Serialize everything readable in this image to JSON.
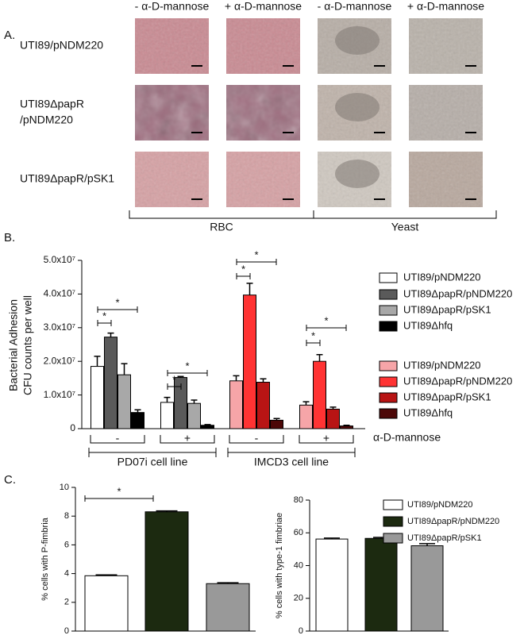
{
  "panel_labels": [
    "A.",
    "B.",
    "C."
  ],
  "panel_a": {
    "column_headers": [
      "- α-D-mannose",
      "+ α-D-mannose",
      "- α-D-mannose",
      "+ α-D-mannose"
    ],
    "row_labels": [
      [
        "UTI89/pNDM220"
      ],
      [
        "UTI89ΔpapR",
        "/pNDM220"
      ],
      [
        "UTI89ΔpapR/pSK1"
      ]
    ],
    "groups": [
      "RBC",
      "Yeast"
    ]
  },
  "chart_data": [
    {
      "type": "bar",
      "ylabel": [
        "Bacterial Adhesion",
        "CFU counts per well"
      ],
      "categories": [
        "-",
        "+",
        "-",
        "+"
      ],
      "group_labels": [
        "PD07i cell line",
        "IMCD3 cell line"
      ],
      "category_axis_label": "α-D-mannose",
      "ylim": [
        0,
        50000000
      ],
      "yticks": [
        0,
        {
          "value": 10000000,
          "label": "1.0x10⁷"
        },
        {
          "value": 20000000,
          "label": "2.0x10⁷"
        },
        {
          "value": 30000000,
          "label": "3.0x10⁷"
        },
        {
          "value": 40000000,
          "label": "4.0x10⁷"
        },
        {
          "value": 50000000,
          "label": "5.0x10⁷"
        }
      ],
      "series": [
        {
          "name": "UTI89/pNDM220",
          "color": "#ffffff",
          "values": [
            18500000,
            7800000,
            null,
            null
          ],
          "errors": [
            3000000,
            1500000,
            null,
            null
          ]
        },
        {
          "name": "UTI89ΔpapR/pNDM220",
          "color": "#5a5a5a",
          "values": [
            27200000,
            15200000,
            null,
            null
          ],
          "errors": [
            1200000,
            300000,
            null,
            null
          ]
        },
        {
          "name": "UTI89ΔpapR/pSK1",
          "color": "#a8a8a8",
          "values": [
            16000000,
            7500000,
            null,
            null
          ],
          "errors": [
            3300000,
            1000000,
            null,
            null
          ]
        },
        {
          "name": "UTI89Δhfq",
          "color": "#000000",
          "values": [
            4800000,
            1000000,
            null,
            null
          ],
          "errors": [
            800000,
            200000,
            null,
            null
          ]
        },
        {
          "name": "UTI89/pNDM220",
          "color": "#f6a5a8",
          "values": [
            null,
            null,
            14200000,
            7000000
          ],
          "errors": [
            null,
            null,
            1500000,
            1000000
          ]
        },
        {
          "name": "UTI89ΔpapR/pNDM220",
          "color": "#ff3333",
          "values": [
            null,
            null,
            39700000,
            20000000
          ],
          "errors": [
            null,
            null,
            3500000,
            2000000
          ]
        },
        {
          "name": "UTI89ΔpapR/pSK1",
          "color": "#b81414",
          "values": [
            null,
            null,
            13800000,
            5800000
          ],
          "errors": [
            null,
            null,
            1000000,
            600000
          ]
        },
        {
          "name": "UTI89Δhfq",
          "color": "#4d0808",
          "values": [
            null,
            null,
            2500000,
            800000
          ],
          "errors": [
            null,
            null,
            500000,
            200000
          ]
        }
      ],
      "annotations": [
        "*",
        "*",
        "*",
        "*",
        "*",
        "*",
        "*",
        "*"
      ]
    },
    {
      "type": "bar",
      "ylabel": "% cells with P-fimbria",
      "values": [
        3.85,
        8.3,
        3.3
      ],
      "errors": [
        0.06,
        0.06,
        0.06
      ],
      "colors": [
        "#ffffff",
        "#1c2a10",
        "#999999"
      ],
      "ylim": [
        0,
        10
      ],
      "yticks": [
        0,
        2,
        4,
        6,
        8,
        10
      ],
      "annotations": [
        "*"
      ]
    },
    {
      "type": "bar",
      "ylabel": "% cells with type-1 fimbriae",
      "values": [
        56.2,
        56.6,
        52.1
      ],
      "errors": [
        0.6,
        0.6,
        1.3
      ],
      "colors": [
        "#ffffff",
        "#1c2a10",
        "#999999"
      ],
      "legend": [
        "UTI89/pNDM220",
        "UTI89ΔpapR/pNDM220",
        "UTI89ΔpapR/pSK1"
      ],
      "ylim": [
        0,
        80
      ],
      "yticks": [
        0,
        20,
        40,
        60,
        80
      ]
    }
  ]
}
